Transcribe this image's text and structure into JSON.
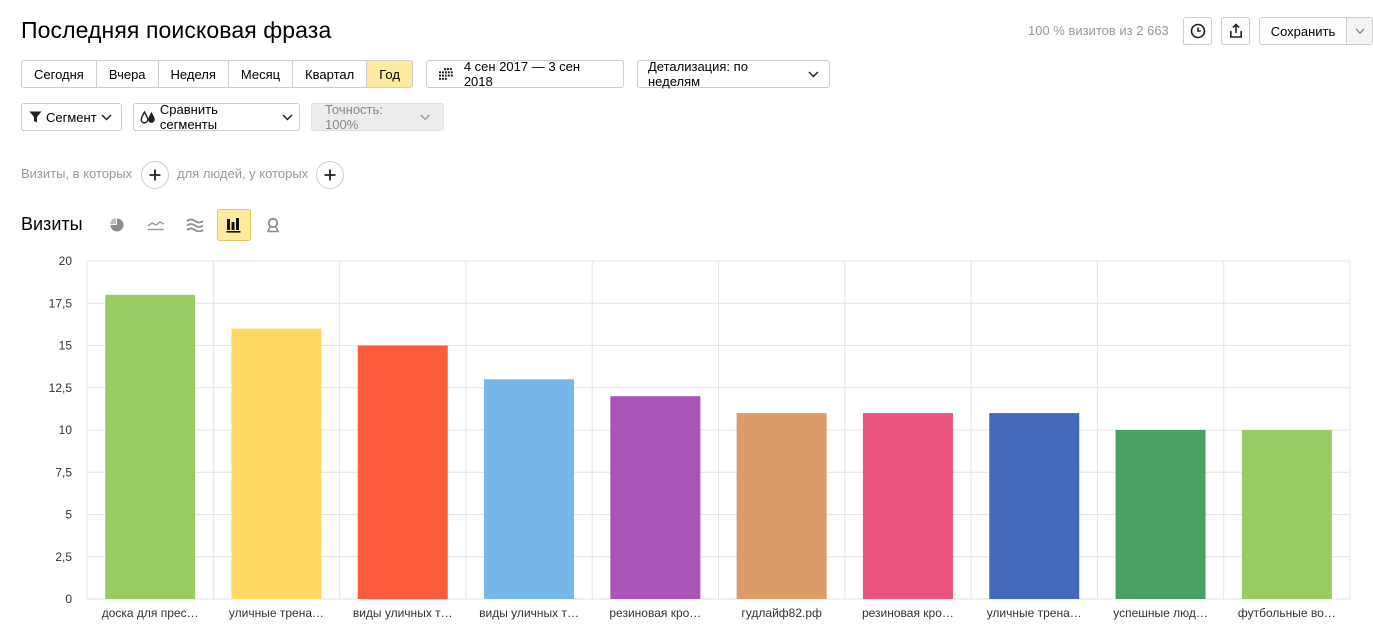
{
  "header": {
    "title": "Последняя поисковая фраза",
    "visits_info": "100 % визитов из 2 663",
    "save_label": "Сохранить"
  },
  "period": {
    "options": [
      "Сегодня",
      "Вчера",
      "Неделя",
      "Месяц",
      "Квартал",
      "Год"
    ],
    "active": "Год",
    "date_range": "4 сен 2017 — 3 сен 2018",
    "detail": "Детализация: по неделям"
  },
  "filters": {
    "segment": "Сегмент",
    "compare": "Сравнить сегменты",
    "accuracy": "Точность: 100%"
  },
  "conditions": {
    "visits_label": "Визиты, в которых",
    "people_label": "для людей, у которых"
  },
  "section": {
    "title": "Визиты"
  },
  "colors": {
    "active_bg": "#ffeba0",
    "bars": [
      "#97cc64",
      "#ffd963",
      "#fd5a3e",
      "#77b6e7",
      "#a955b8",
      "#dc9b6a",
      "#ea557e",
      "#4368bc",
      "#4aa064",
      "#97cc64"
    ]
  },
  "chart_data": {
    "type": "bar",
    "categories": [
      "доска для прес…",
      "уличные трена…",
      "виды уличных т…",
      "виды уличных т…",
      "резиновая кро…",
      "гудлайф82.рф",
      "резиновая кро…",
      "уличные трена…",
      "успешные люд…",
      "футбольные во…"
    ],
    "values": [
      18,
      16,
      15,
      13,
      12,
      11,
      11,
      11,
      10,
      10
    ],
    "ylim": [
      0,
      20
    ],
    "yticks": [
      "0",
      "2,5",
      "5",
      "7,5",
      "10",
      "12,5",
      "15",
      "17,5",
      "20"
    ],
    "grid": true
  }
}
